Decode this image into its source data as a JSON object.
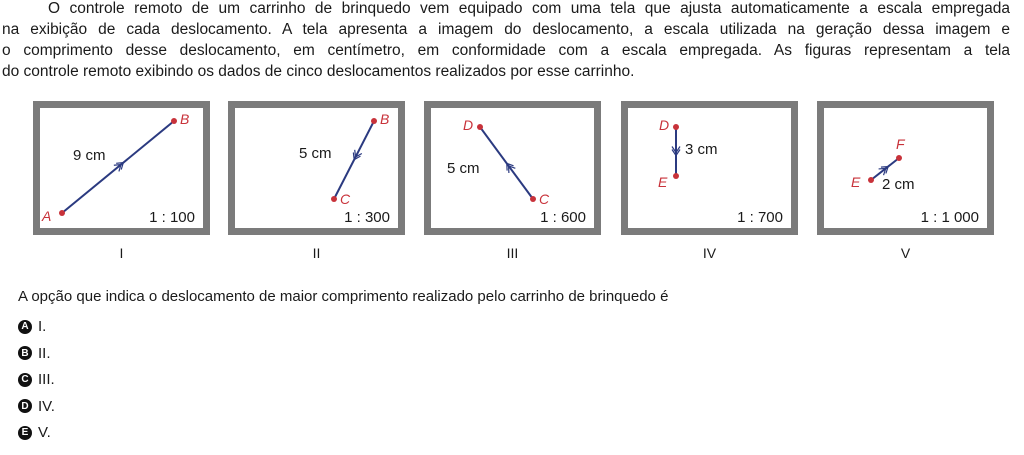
{
  "statement_lines": [
    "O controle remoto de um carrinho de brinquedo vem equipado com uma tela que ajusta automaticamente a escala empregada",
    "na exibição de cada deslocamento. A tela apresenta a imagem do deslocamento, a escala utilizada na geração dessa imagem e",
    "o comprimento desse deslocamento, em centímetro, em conformidade com a escala empregada. As figuras representam a tela",
    "do controle remoto exibindo os dados de cinco deslocamentos realizados por esse carrinho."
  ],
  "figures": [
    {
      "numeral": "I",
      "start": "A",
      "end": "B",
      "length": "9 cm",
      "scale": "1 : 100"
    },
    {
      "numeral": "II",
      "start": "B",
      "end": "C",
      "length": "5 cm",
      "scale": "1 : 300"
    },
    {
      "numeral": "III",
      "start": "C",
      "end": "D",
      "length": "5 cm",
      "scale": "1 : 600"
    },
    {
      "numeral": "IV",
      "start": "D",
      "end": "E",
      "length": "3 cm",
      "scale": "1 : 700"
    },
    {
      "numeral": "V",
      "start": "E",
      "end": "F",
      "length": "2 cm",
      "scale": "1 : 1 000"
    }
  ],
  "question": "A opção que indica o deslocamento de maior comprimento realizado pelo carrinho de brinquedo é",
  "options": [
    {
      "letter": "A",
      "text": "I."
    },
    {
      "letter": "B",
      "text": "II."
    },
    {
      "letter": "C",
      "text": "III."
    },
    {
      "letter": "D",
      "text": "IV."
    },
    {
      "letter": "E",
      "text": "V."
    }
  ],
  "colors": {
    "segment": "#2b3a80",
    "point": "#c8323a",
    "frame": "#7b7b7b"
  }
}
